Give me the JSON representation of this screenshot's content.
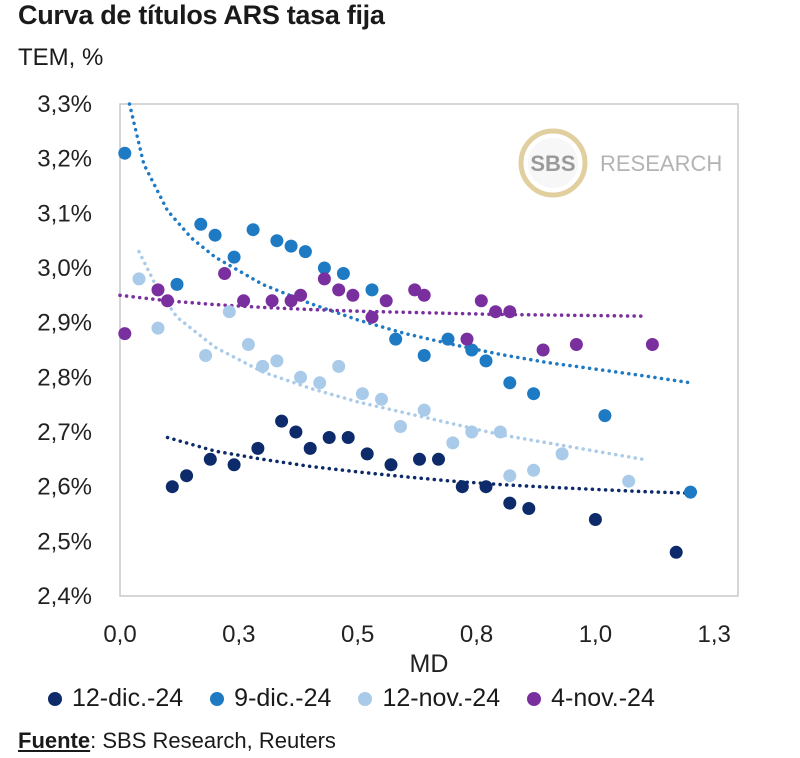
{
  "chart_data": {
    "type": "scatter",
    "title": "Curva de títulos ARS tasa fija",
    "ylabel": "TEM, %",
    "xlabel": "MD",
    "xlim": [
      0.0,
      1.3
    ],
    "ylim": [
      2.4,
      3.3
    ],
    "x_ticks": [
      "0,0",
      "0,3",
      "0,5",
      "0,8",
      "1,0",
      "1,3"
    ],
    "x_tick_values": [
      0.0,
      0.25,
      0.5,
      0.75,
      1.0,
      1.25
    ],
    "y_ticks": [
      "2,4%",
      "2,5%",
      "2,6%",
      "2,7%",
      "2,8%",
      "2,9%",
      "3,0%",
      "3,1%",
      "3,2%",
      "3,3%"
    ],
    "y_tick_values": [
      2.4,
      2.5,
      2.6,
      2.7,
      2.8,
      2.9,
      3.0,
      3.1,
      3.2,
      3.3
    ],
    "watermark": {
      "logo": "SBS",
      "text": "RESEARCH"
    },
    "series": [
      {
        "name": "12-dic.-24",
        "color": "#0d2b6b",
        "points": [
          [
            0.11,
            2.6
          ],
          [
            0.14,
            2.62
          ],
          [
            0.19,
            2.65
          ],
          [
            0.24,
            2.64
          ],
          [
            0.29,
            2.67
          ],
          [
            0.34,
            2.72
          ],
          [
            0.37,
            2.7
          ],
          [
            0.4,
            2.67
          ],
          [
            0.44,
            2.69
          ],
          [
            0.48,
            2.69
          ],
          [
            0.52,
            2.66
          ],
          [
            0.57,
            2.64
          ],
          [
            0.63,
            2.65
          ],
          [
            0.67,
            2.65
          ],
          [
            0.72,
            2.6
          ],
          [
            0.77,
            2.6
          ],
          [
            0.82,
            2.57
          ],
          [
            0.86,
            2.56
          ],
          [
            1.0,
            2.54
          ],
          [
            1.17,
            2.48
          ]
        ],
        "trend": [
          [
            0.1,
            2.69
          ],
          [
            0.2,
            2.665
          ],
          [
            0.3,
            2.65
          ],
          [
            0.4,
            2.637
          ],
          [
            0.5,
            2.627
          ],
          [
            0.6,
            2.618
          ],
          [
            0.7,
            2.61
          ],
          [
            0.8,
            2.604
          ],
          [
            0.9,
            2.599
          ],
          [
            1.0,
            2.595
          ],
          [
            1.1,
            2.591
          ],
          [
            1.2,
            2.588
          ]
        ]
      },
      {
        "name": "9-dic.-24",
        "color": "#1f7ac4",
        "points": [
          [
            0.01,
            3.21
          ],
          [
            0.12,
            2.97
          ],
          [
            0.17,
            3.08
          ],
          [
            0.2,
            3.06
          ],
          [
            0.24,
            3.02
          ],
          [
            0.28,
            3.07
          ],
          [
            0.33,
            3.05
          ],
          [
            0.36,
            3.04
          ],
          [
            0.39,
            3.03
          ],
          [
            0.43,
            3.0
          ],
          [
            0.47,
            2.99
          ],
          [
            0.53,
            2.96
          ],
          [
            0.58,
            2.87
          ],
          [
            0.64,
            2.84
          ],
          [
            0.69,
            2.87
          ],
          [
            0.74,
            2.85
          ],
          [
            0.77,
            2.83
          ],
          [
            0.82,
            2.79
          ],
          [
            0.87,
            2.77
          ],
          [
            1.02,
            2.73
          ],
          [
            1.2,
            2.59
          ]
        ],
        "trend": [
          [
            0.02,
            3.3
          ],
          [
            0.05,
            3.19
          ],
          [
            0.1,
            3.105
          ],
          [
            0.15,
            3.055
          ],
          [
            0.2,
            3.02
          ],
          [
            0.3,
            2.97
          ],
          [
            0.4,
            2.935
          ],
          [
            0.5,
            2.905
          ],
          [
            0.6,
            2.88
          ],
          [
            0.7,
            2.86
          ],
          [
            0.8,
            2.842
          ],
          [
            0.9,
            2.827
          ],
          [
            1.0,
            2.815
          ],
          [
            1.1,
            2.803
          ],
          [
            1.2,
            2.79
          ]
        ]
      },
      {
        "name": "12-nov.-24",
        "color": "#a9cbe9",
        "points": [
          [
            0.04,
            2.98
          ],
          [
            0.08,
            2.89
          ],
          [
            0.18,
            2.84
          ],
          [
            0.23,
            2.92
          ],
          [
            0.27,
            2.86
          ],
          [
            0.3,
            2.82
          ],
          [
            0.33,
            2.83
          ],
          [
            0.38,
            2.8
          ],
          [
            0.42,
            2.79
          ],
          [
            0.46,
            2.82
          ],
          [
            0.51,
            2.77
          ],
          [
            0.55,
            2.76
          ],
          [
            0.59,
            2.71
          ],
          [
            0.64,
            2.74
          ],
          [
            0.7,
            2.68
          ],
          [
            0.74,
            2.7
          ],
          [
            0.8,
            2.7
          ],
          [
            0.82,
            2.62
          ],
          [
            0.87,
            2.63
          ],
          [
            0.93,
            2.66
          ],
          [
            1.07,
            2.61
          ]
        ],
        "trend": [
          [
            0.04,
            3.03
          ],
          [
            0.08,
            2.96
          ],
          [
            0.12,
            2.91
          ],
          [
            0.2,
            2.855
          ],
          [
            0.3,
            2.81
          ],
          [
            0.4,
            2.78
          ],
          [
            0.5,
            2.755
          ],
          [
            0.6,
            2.735
          ],
          [
            0.7,
            2.715
          ],
          [
            0.8,
            2.695
          ],
          [
            0.9,
            2.68
          ],
          [
            1.0,
            2.665
          ],
          [
            1.1,
            2.65
          ]
        ]
      },
      {
        "name": "4-nov.-24",
        "color": "#7a2f9e",
        "points": [
          [
            0.01,
            2.88
          ],
          [
            0.08,
            2.96
          ],
          [
            0.1,
            2.94
          ],
          [
            0.22,
            2.99
          ],
          [
            0.26,
            2.94
          ],
          [
            0.32,
            2.94
          ],
          [
            0.36,
            2.94
          ],
          [
            0.38,
            2.95
          ],
          [
            0.43,
            2.98
          ],
          [
            0.46,
            2.96
          ],
          [
            0.49,
            2.95
          ],
          [
            0.53,
            2.91
          ],
          [
            0.56,
            2.94
          ],
          [
            0.62,
            2.96
          ],
          [
            0.64,
            2.95
          ],
          [
            0.73,
            2.87
          ],
          [
            0.76,
            2.94
          ],
          [
            0.79,
            2.92
          ],
          [
            0.82,
            2.92
          ],
          [
            0.89,
            2.85
          ],
          [
            0.96,
            2.86
          ],
          [
            1.12,
            2.86
          ]
        ],
        "trend": [
          [
            0.0,
            2.95
          ],
          [
            0.1,
            2.94
          ],
          [
            0.2,
            2.933
          ],
          [
            0.3,
            2.928
          ],
          [
            0.4,
            2.924
          ],
          [
            0.5,
            2.921
          ],
          [
            0.6,
            2.919
          ],
          [
            0.7,
            2.917
          ],
          [
            0.8,
            2.915
          ],
          [
            0.9,
            2.914
          ],
          [
            1.0,
            2.913
          ],
          [
            1.1,
            2.912
          ]
        ]
      }
    ]
  },
  "source": {
    "label": "Fuente",
    "text": ": SBS Research, Reuters"
  }
}
